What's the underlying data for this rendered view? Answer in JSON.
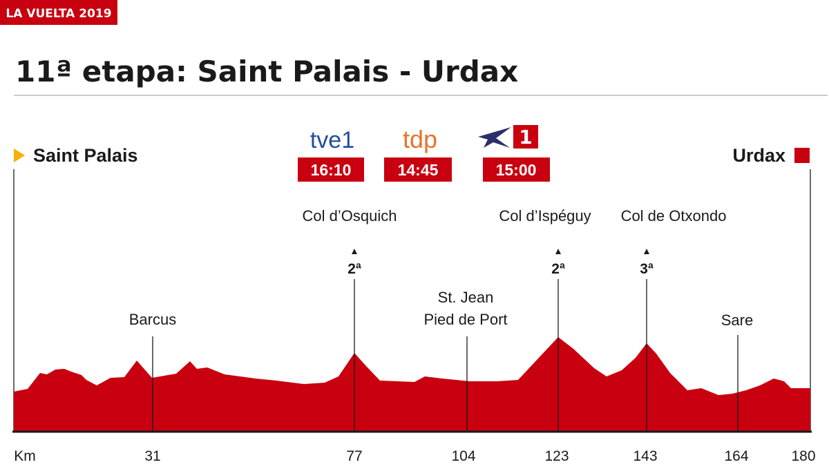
{
  "header": {
    "tag": "LA VUELTA 2019",
    "title": "11ª etapa: Saint Palais - Urdax"
  },
  "route": {
    "start": "Saint Palais",
    "finish": "Urdax"
  },
  "broadcasts": [
    {
      "channel": "tve1",
      "time": "16:10"
    },
    {
      "channel": "tdp",
      "time": "14:45"
    },
    {
      "channel": "1",
      "time": "15:00"
    }
  ],
  "places": [
    {
      "name": "Barcus"
    },
    {
      "name": "Col d’Osquich",
      "category": "2ª"
    },
    {
      "name": [
        "St. Jean",
        "Pied de Port"
      ]
    },
    {
      "name": "Col d’Ispéguy",
      "category": "2ª"
    },
    {
      "name": "Col de Otxondo",
      "category": "3ª"
    },
    {
      "name": "Sare"
    }
  ],
  "axis": {
    "unit": "Km",
    "ticks": [
      "31",
      "77",
      "104",
      "123",
      "143",
      "164",
      "180"
    ]
  }
}
